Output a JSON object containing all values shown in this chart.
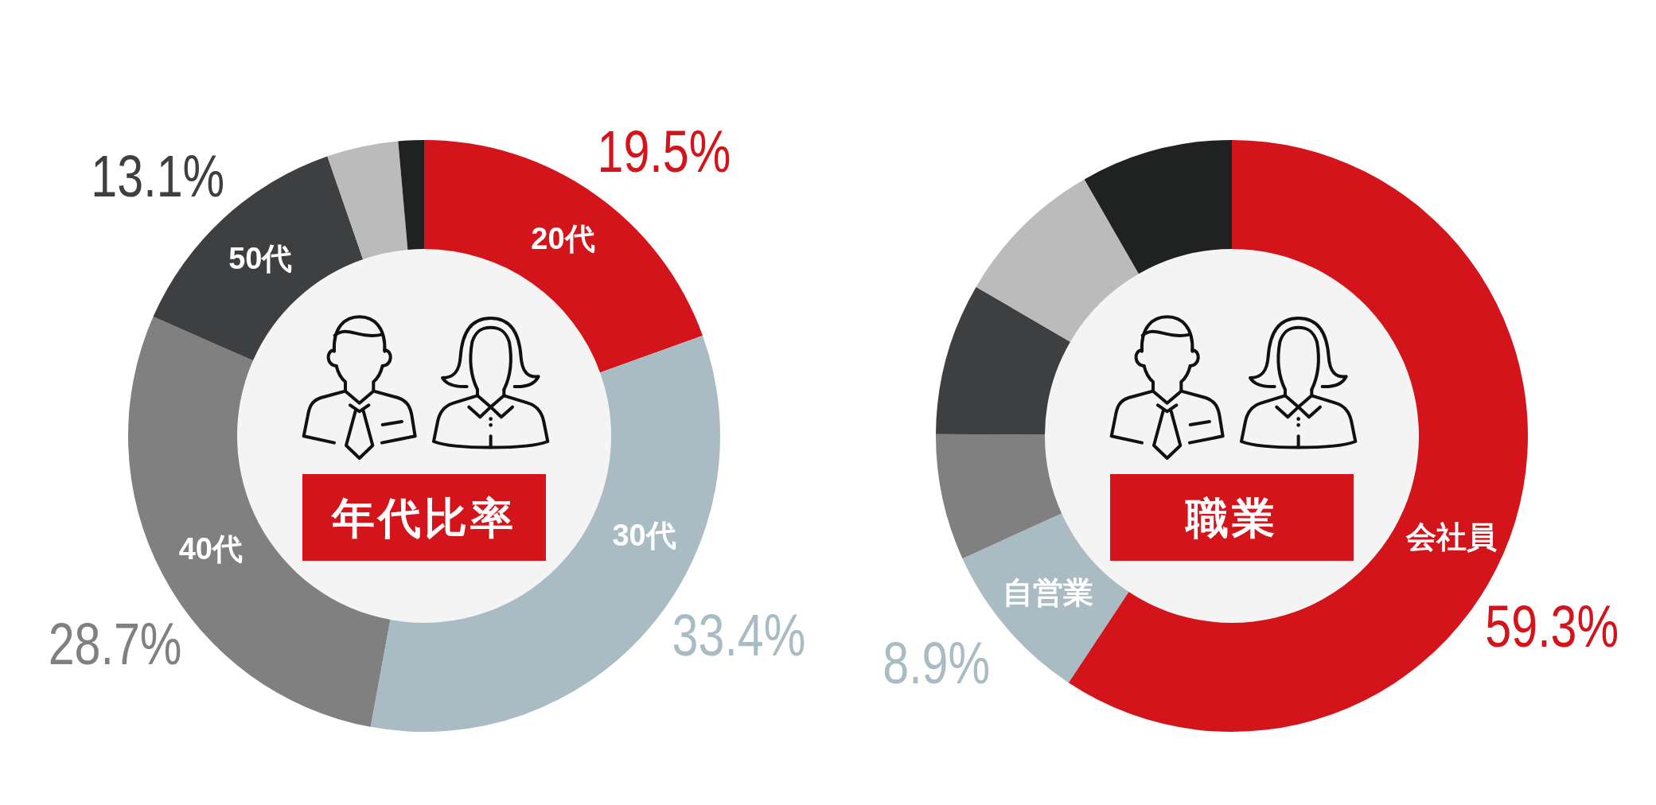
{
  "chart_data": [
    {
      "type": "donut",
      "title": "年代比率",
      "categories": [
        "20代",
        "30代",
        "40代",
        "50代",
        null,
        null
      ],
      "values": [
        19.5,
        33.4,
        28.7,
        13.1,
        3.9,
        1.4
      ],
      "colors": [
        "#d3141b",
        "#a9bcc4",
        "#808080",
        "#3e3f41",
        "#bbbbbb",
        "#202121"
      ],
      "value_labels": [
        "19.5%",
        "33.4%",
        "28.7%",
        "13.1%",
        null,
        null
      ]
    },
    {
      "type": "donut",
      "title": "職業",
      "categories": [
        "会社員",
        "自営業",
        null,
        null,
        null,
        null
      ],
      "values": [
        59.3,
        8.9,
        6.9,
        8.3,
        8.3,
        8.3
      ],
      "colors": [
        "#d3141b",
        "#a9bcc4",
        "#808080",
        "#3e3f41",
        "#bbbbbb",
        "#202121"
      ],
      "value_labels": [
        "59.3%",
        "8.9%",
        null,
        null,
        null,
        null
      ]
    }
  ]
}
